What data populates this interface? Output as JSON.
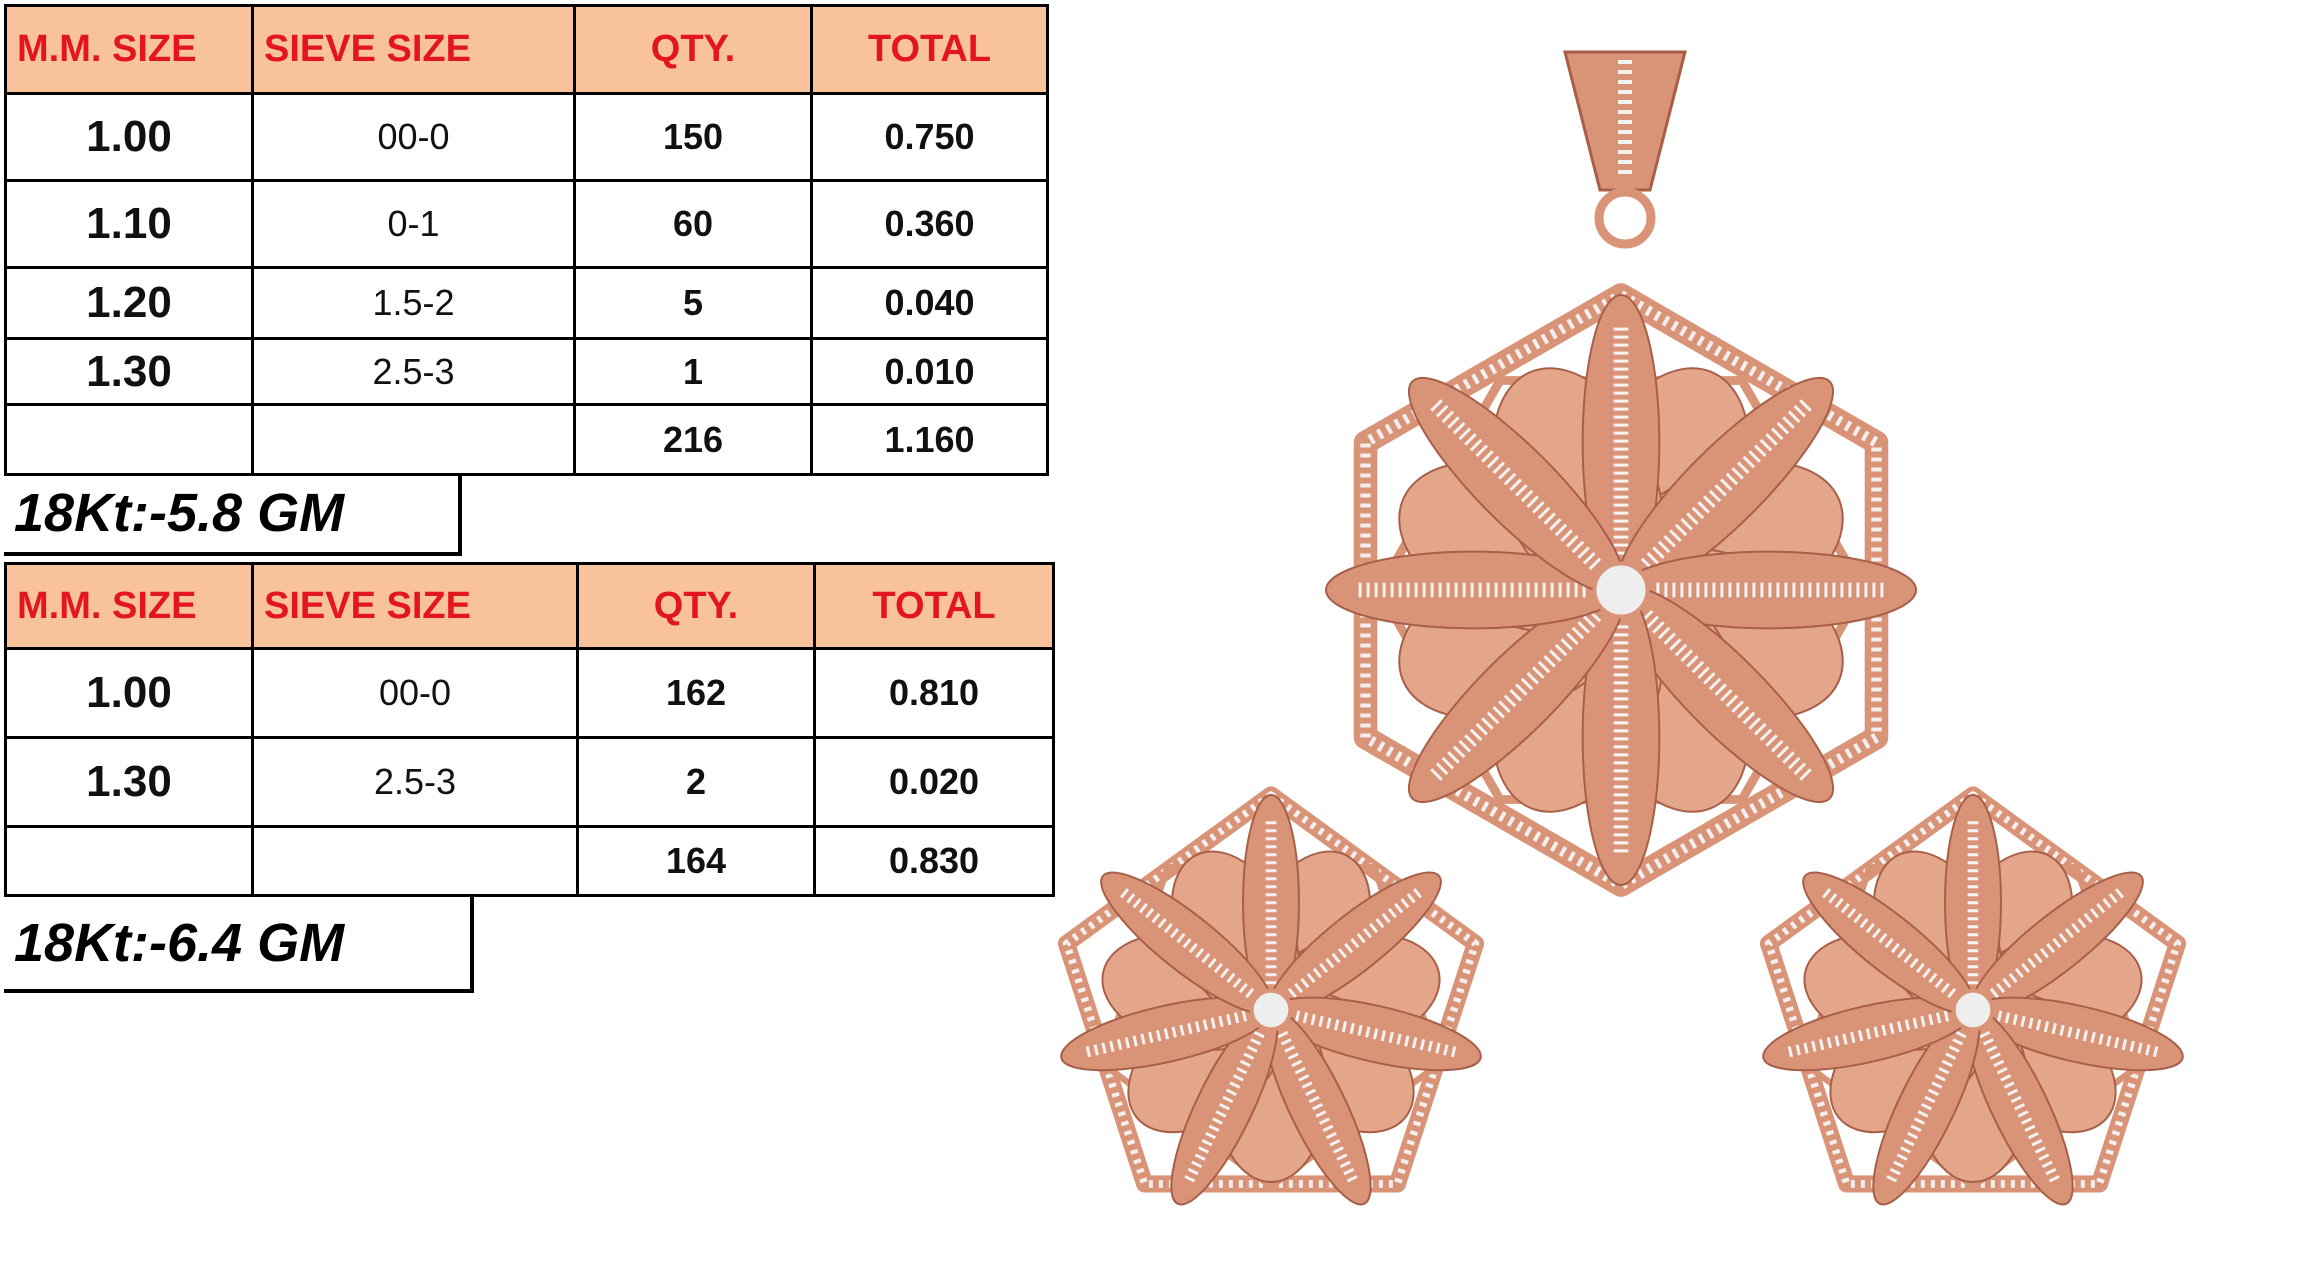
{
  "tables": [
    {
      "header": [
        "M.M. SIZE",
        "SIEVE SIZE",
        "QTY.",
        "TOTAL"
      ],
      "rows": [
        [
          "1.00",
          "00-0",
          "150",
          "0.750"
        ],
        [
          "1.10",
          "0-1",
          "60",
          "0.360"
        ],
        [
          "1.20",
          "1.5-2",
          "5",
          "0.040"
        ],
        [
          "1.30",
          "2.5-3",
          "1",
          "0.010"
        ]
      ],
      "total": {
        "qty": "216",
        "total": "1.160"
      },
      "weight": "18Kt:-5.8 GM"
    },
    {
      "header": [
        "M.M. SIZE",
        "SIEVE SIZE",
        "QTY.",
        "TOTAL"
      ],
      "rows": [
        [
          "1.00",
          "00-0",
          "162",
          "0.810"
        ],
        [
          "1.30",
          "2.5-3",
          "2",
          "0.020"
        ]
      ],
      "total": {
        "qty": "164",
        "total": "0.830"
      },
      "weight": "18Kt:-6.4 GM"
    }
  ]
}
